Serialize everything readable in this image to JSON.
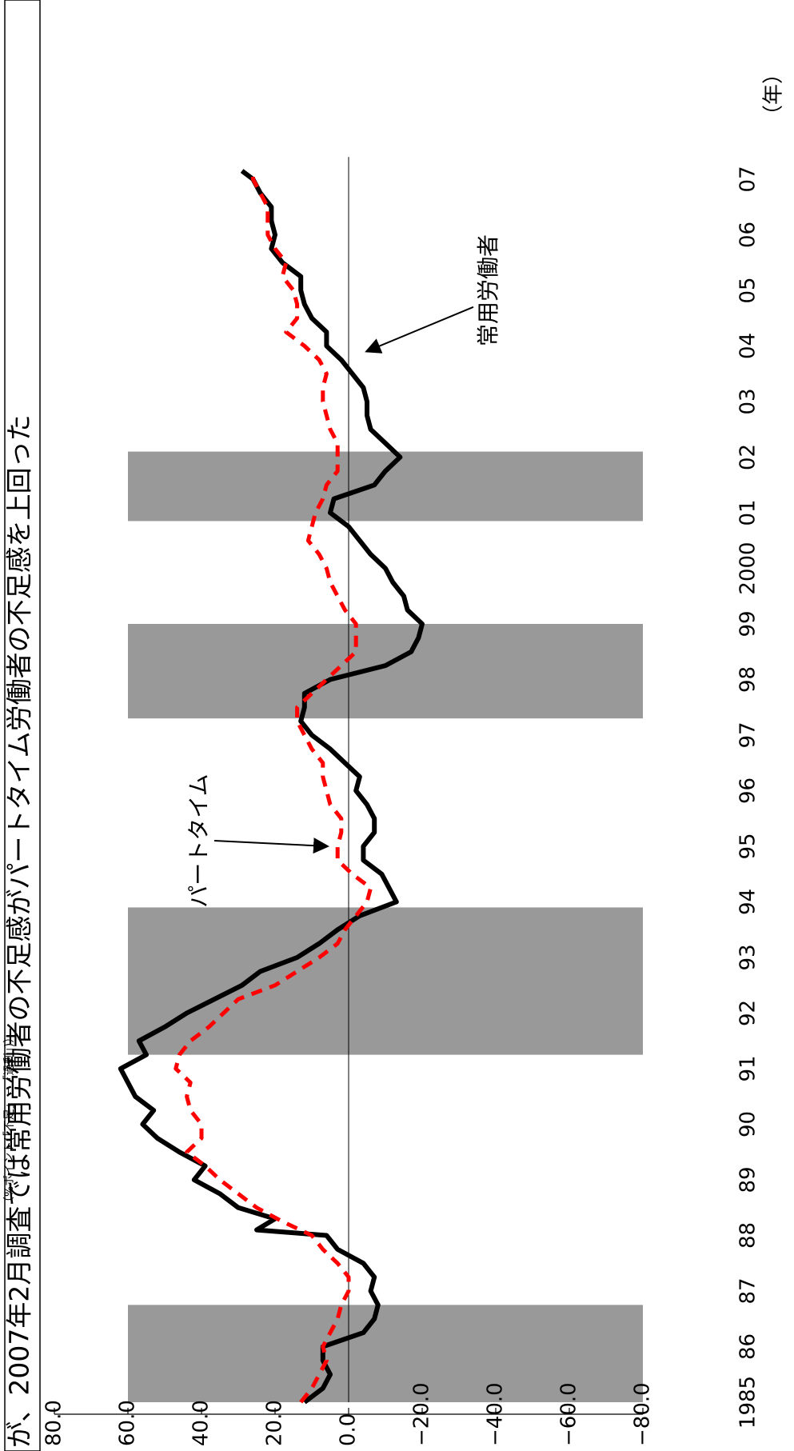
{
  "title": "が、2007年2月調査では常用労働者の不足感がパートタイム労働者の不足感を上回った",
  "unit_label": "（%ポイント(「不足」－「過剰」)）",
  "year_unit": "（年）",
  "chart_data": {
    "type": "line",
    "orientation": "rotated-90-clockwise",
    "title": "が、2007年2月調査では常用労働者の不足感がパートタイム労働者の不足感を上回った",
    "ylabel": "（%ポイント(「不足」－「過剰」)）",
    "xlabel": "（年）",
    "ylim": [
      -80,
      80
    ],
    "xlim": [
      1985,
      2007.4
    ],
    "y_ticks": [
      80,
      60,
      40,
      20,
      0,
      -20,
      -40,
      -60,
      -80
    ],
    "y_tick_labels": [
      "80.0",
      "60.0",
      "40.0",
      "20.0",
      "0.0",
      "−20.0",
      "−40.0",
      "−60.0",
      "−80.0"
    ],
    "x_ticks": [
      1985,
      1986,
      1987,
      1988,
      1989,
      1990,
      1991,
      1992,
      1993,
      1994,
      1995,
      1996,
      1997,
      1998,
      1999,
      2000,
      2001,
      2002,
      2003,
      2004,
      2005,
      2006,
      2007
    ],
    "x_tick_labels": [
      "1985",
      "86",
      "87",
      "88",
      "89",
      "90",
      "91",
      "92",
      "93",
      "94",
      "95",
      "96",
      "97",
      "98",
      "99",
      "2000",
      "01",
      "02",
      "03",
      "04",
      "05",
      "06",
      "07"
    ],
    "zero_line": true,
    "recession_bands": [
      [
        1985.0,
        1986.75
      ],
      [
        1991.25,
        1993.9
      ],
      [
        1997.3,
        1999.0
      ],
      [
        2000.85,
        2002.1
      ]
    ],
    "series": [
      {
        "name": "常用労働者",
        "color": "#000000",
        "style": "solid",
        "points": [
          [
            1985.0,
            12
          ],
          [
            1985.25,
            7
          ],
          [
            1985.5,
            5
          ],
          [
            1985.75,
            7
          ],
          [
            1986.0,
            7
          ],
          [
            1986.25,
            -4
          ],
          [
            1986.5,
            -7
          ],
          [
            1986.75,
            -8
          ],
          [
            1987.0,
            -6
          ],
          [
            1987.25,
            -7
          ],
          [
            1987.5,
            -4
          ],
          [
            1987.75,
            3
          ],
          [
            1988.0,
            6
          ],
          [
            1988.1,
            25
          ],
          [
            1988.3,
            20
          ],
          [
            1988.5,
            30
          ],
          [
            1988.75,
            35
          ],
          [
            1989.0,
            42
          ],
          [
            1989.25,
            39
          ],
          [
            1989.5,
            46
          ],
          [
            1989.75,
            52
          ],
          [
            1990.0,
            56
          ],
          [
            1990.25,
            53
          ],
          [
            1990.5,
            58
          ],
          [
            1990.75,
            60
          ],
          [
            1991.0,
            62
          ],
          [
            1991.25,
            55
          ],
          [
            1991.5,
            57
          ],
          [
            1991.75,
            50
          ],
          [
            1992.0,
            44
          ],
          [
            1992.5,
            29
          ],
          [
            1992.75,
            24
          ],
          [
            1993.0,
            14
          ],
          [
            1993.25,
            8
          ],
          [
            1993.5,
            3
          ],
          [
            1993.75,
            -3
          ],
          [
            1994.0,
            -13
          ],
          [
            1994.25,
            -11
          ],
          [
            1994.5,
            -9
          ],
          [
            1994.75,
            -4
          ],
          [
            1995.0,
            -4
          ],
          [
            1995.25,
            -7
          ],
          [
            1995.5,
            -7
          ],
          [
            1995.75,
            -5
          ],
          [
            1996.0,
            -2
          ],
          [
            1996.25,
            -3
          ],
          [
            1996.5,
            1
          ],
          [
            1996.75,
            5
          ],
          [
            1997.0,
            10
          ],
          [
            1997.25,
            13
          ],
          [
            1997.5,
            12
          ],
          [
            1997.75,
            12
          ],
          [
            1998.0,
            5
          ],
          [
            1998.25,
            -10
          ],
          [
            1998.5,
            -17
          ],
          [
            1998.75,
            -19
          ],
          [
            1999.0,
            -20
          ],
          [
            1999.25,
            -16
          ],
          [
            1999.5,
            -15
          ],
          [
            1999.75,
            -12
          ],
          [
            2000.0,
            -10
          ],
          [
            2000.25,
            -6
          ],
          [
            2000.5,
            -3
          ],
          [
            2000.75,
            0
          ],
          [
            2001.0,
            5
          ],
          [
            2001.25,
            4
          ],
          [
            2001.5,
            -7
          ],
          [
            2001.75,
            -10
          ],
          [
            2002.0,
            -14
          ],
          [
            2002.25,
            -10
          ],
          [
            2002.5,
            -6
          ],
          [
            2002.75,
            -5
          ],
          [
            2003.0,
            -5
          ],
          [
            2003.25,
            -4
          ],
          [
            2003.5,
            -1
          ],
          [
            2003.75,
            2
          ],
          [
            2004.0,
            6
          ],
          [
            2004.25,
            6
          ],
          [
            2004.5,
            10
          ],
          [
            2004.75,
            12
          ],
          [
            2005.0,
            13
          ],
          [
            2005.25,
            13
          ],
          [
            2005.5,
            18
          ],
          [
            2005.75,
            21
          ],
          [
            2006.0,
            20
          ],
          [
            2006.25,
            21
          ],
          [
            2006.5,
            21
          ],
          [
            2006.75,
            24
          ],
          [
            2007.0,
            26
          ],
          [
            2007.15,
            29
          ]
        ]
      },
      {
        "name": "パートタイム",
        "color": "#ff0000",
        "style": "dashed",
        "points": [
          [
            1985.0,
            13
          ],
          [
            1985.25,
            10
          ],
          [
            1985.5,
            8
          ],
          [
            1985.75,
            6
          ],
          [
            1986.0,
            7
          ],
          [
            1986.25,
            5
          ],
          [
            1986.5,
            3
          ],
          [
            1986.75,
            2
          ],
          [
            1987.0,
            0
          ],
          [
            1987.25,
            0
          ],
          [
            1987.5,
            3
          ],
          [
            1987.75,
            7
          ],
          [
            1988.0,
            10
          ],
          [
            1988.25,
            18
          ],
          [
            1988.5,
            25
          ],
          [
            1988.75,
            30
          ],
          [
            1989.0,
            35
          ],
          [
            1989.25,
            39
          ],
          [
            1989.5,
            44
          ],
          [
            1989.75,
            40
          ],
          [
            1990.0,
            40
          ],
          [
            1990.25,
            43
          ],
          [
            1990.5,
            44
          ],
          [
            1990.75,
            43
          ],
          [
            1991.0,
            47
          ],
          [
            1991.25,
            46
          ],
          [
            1991.5,
            43
          ],
          [
            1991.75,
            38
          ],
          [
            1992.0,
            34
          ],
          [
            1992.25,
            30
          ],
          [
            1992.5,
            20
          ],
          [
            1992.75,
            14
          ],
          [
            1993.0,
            8
          ],
          [
            1993.25,
            3
          ],
          [
            1993.5,
            1
          ],
          [
            1993.75,
            -2
          ],
          [
            1994.0,
            -5
          ],
          [
            1994.25,
            -6
          ],
          [
            1994.5,
            -1
          ],
          [
            1994.75,
            3
          ],
          [
            1995.0,
            3
          ],
          [
            1995.25,
            2
          ],
          [
            1995.5,
            2
          ],
          [
            1995.75,
            5
          ],
          [
            1996.0,
            6
          ],
          [
            1996.25,
            7
          ],
          [
            1996.5,
            7
          ],
          [
            1996.75,
            10
          ],
          [
            1997.0,
            12
          ],
          [
            1997.25,
            14
          ],
          [
            1997.5,
            14
          ],
          [
            1997.75,
            10
          ],
          [
            1998.0,
            6
          ],
          [
            1998.25,
            2
          ],
          [
            1998.5,
            -2
          ],
          [
            1998.75,
            -2
          ],
          [
            1999.0,
            -2
          ],
          [
            1999.25,
            1
          ],
          [
            1999.5,
            3
          ],
          [
            1999.75,
            5
          ],
          [
            2000.0,
            6
          ],
          [
            2000.25,
            8
          ],
          [
            2000.5,
            11
          ],
          [
            2000.75,
            10
          ],
          [
            2001.0,
            9
          ],
          [
            2001.25,
            7
          ],
          [
            2001.5,
            6
          ],
          [
            2001.75,
            3
          ],
          [
            2002.0,
            3
          ],
          [
            2002.25,
            3
          ],
          [
            2002.5,
            5
          ],
          [
            2002.75,
            6
          ],
          [
            2003.0,
            7
          ],
          [
            2003.25,
            7
          ],
          [
            2003.5,
            6
          ],
          [
            2003.75,
            8
          ],
          [
            2004.0,
            12
          ],
          [
            2004.25,
            17
          ],
          [
            2004.5,
            14
          ],
          [
            2004.75,
            14
          ],
          [
            2005.0,
            15
          ],
          [
            2005.25,
            18
          ],
          [
            2005.5,
            17
          ],
          [
            2005.75,
            20
          ],
          [
            2006.0,
            22
          ],
          [
            2006.25,
            22
          ],
          [
            2006.5,
            22
          ],
          [
            2006.75,
            24
          ],
          [
            2007.0,
            26
          ],
          [
            2007.15,
            26
          ]
        ]
      }
    ],
    "annotations": [
      {
        "text": "パートタイム",
        "series": "パートタイム"
      },
      {
        "text": "常用労働者",
        "series": "常用労働者"
      }
    ]
  }
}
